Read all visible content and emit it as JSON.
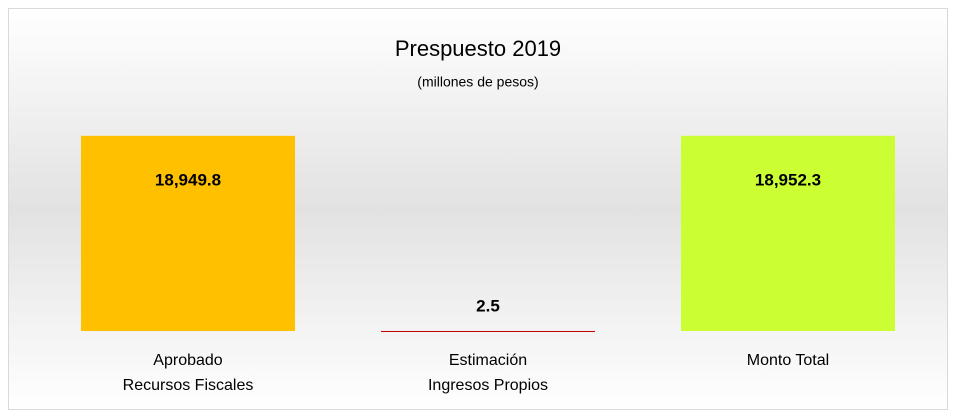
{
  "chart_data": {
    "type": "bar",
    "title": "Prespuesto 2019",
    "subtitle": "(millones de pesos)",
    "categories": [
      [
        "Aprobado",
        "Recursos Fiscales"
      ],
      [
        "Estimación",
        "Ingresos Propios"
      ],
      [
        "Monto Total"
      ]
    ],
    "values": [
      18949.8,
      2.5,
      18952.3
    ],
    "value_labels": [
      "18,949.8",
      "2.5",
      "18,952.3"
    ],
    "colors": [
      "#ffc000",
      "#c00000",
      "#ccff33"
    ],
    "ylim": [
      0,
      20000
    ]
  }
}
